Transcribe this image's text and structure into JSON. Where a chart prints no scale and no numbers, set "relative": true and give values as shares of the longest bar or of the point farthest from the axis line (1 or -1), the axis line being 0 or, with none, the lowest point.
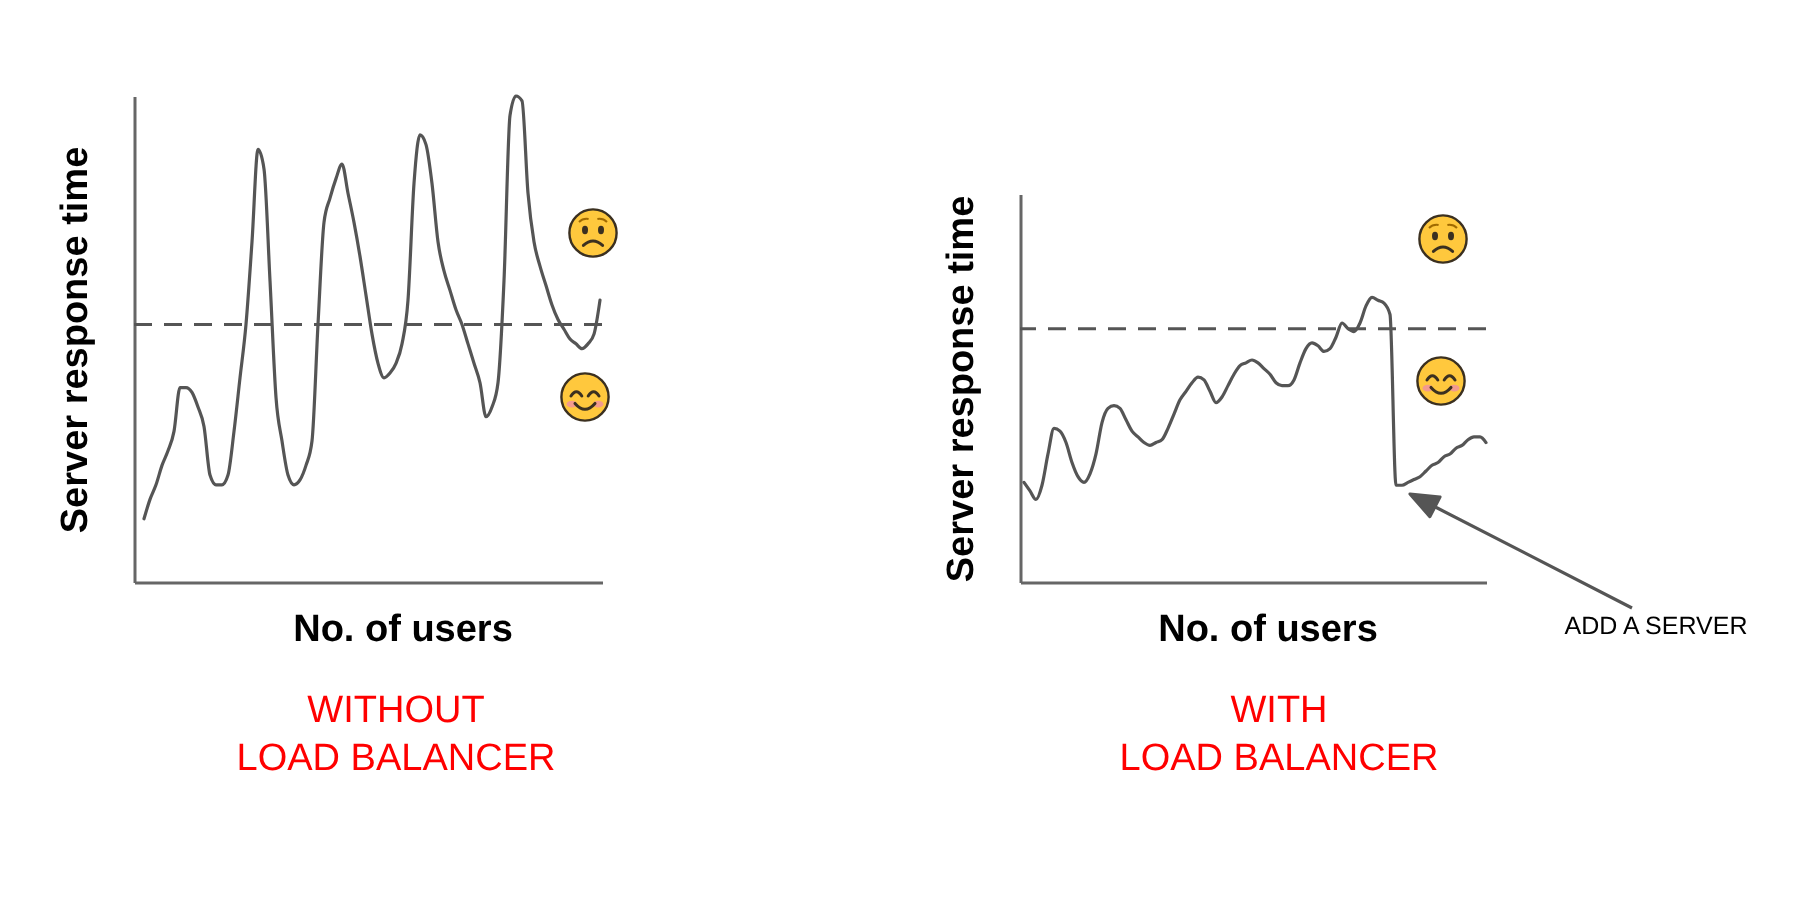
{
  "chart_data": [
    {
      "type": "line",
      "relative": true,
      "title": "WITHOUT\nLOAD BALANCER",
      "xlabel": "No. of users",
      "ylabel": "Server response time",
      "categories": [
        null,
        null,
        null,
        null,
        null,
        null,
        null,
        null,
        null,
        null,
        null,
        null,
        null,
        null,
        null,
        null,
        null,
        null,
        null,
        null,
        null,
        null,
        null,
        null,
        null,
        null,
        null,
        null,
        null,
        null,
        null,
        null,
        null,
        null,
        null,
        null,
        null,
        null,
        null,
        null,
        null,
        null,
        null,
        null,
        null,
        null,
        null,
        null,
        null,
        null,
        null,
        null,
        null,
        null,
        null,
        null,
        null,
        null,
        null,
        null,
        null,
        null,
        null,
        null,
        null,
        null,
        null,
        null,
        null,
        null,
        null,
        null,
        null,
        null,
        null,
        null,
        null
      ],
      "series": [
        {
          "color": "#555555",
          "values": [
            0.13,
            0.17,
            0.2,
            0.24,
            0.27,
            0.31,
            0.4,
            0.4,
            0.39,
            0.36,
            0.32,
            0.22,
            0.2,
            0.2,
            0.22,
            0.31,
            0.42,
            0.53,
            0.7,
            0.89,
            0.85,
            0.62,
            0.38,
            0.29,
            0.22,
            0.2,
            0.21,
            0.24,
            0.29,
            0.53,
            0.74,
            0.79,
            0.83,
            0.86,
            0.8,
            0.74,
            0.67,
            0.59,
            0.51,
            0.45,
            0.42,
            0.43,
            0.45,
            0.49,
            0.58,
            0.82,
            0.92,
            0.9,
            0.82,
            0.7,
            0.64,
            0.6,
            0.56,
            0.53,
            0.49,
            0.45,
            0.41,
            0.34,
            0.36,
            0.41,
            0.62,
            0.96,
            1.0,
            0.99,
            0.8,
            0.7,
            0.65,
            0.61,
            0.57,
            0.54,
            0.52,
            0.5,
            0.49,
            0.48,
            0.49,
            0.51,
            0.58
          ]
        }
      ],
      "ref_lines": [
        {
          "axis": "y",
          "value": 0.53,
          "color": "#555555",
          "line_style": "dashed"
        }
      ]
    },
    {
      "type": "line",
      "relative": true,
      "title": "WITH\nLOAD BALANCER",
      "xlabel": "No. of users",
      "ylabel": "Server response time",
      "categories": [
        null,
        null,
        null,
        null,
        null,
        null,
        null,
        null,
        null,
        null,
        null,
        null,
        null,
        null,
        null,
        null,
        null,
        null,
        null,
        null,
        null,
        null,
        null,
        null,
        null,
        null,
        null,
        null,
        null,
        null,
        null,
        null,
        null,
        null,
        null,
        null,
        null,
        null,
        null,
        null,
        null,
        null,
        null,
        null,
        null,
        null,
        null,
        null,
        null,
        null,
        null,
        null,
        null,
        null,
        null,
        null,
        null,
        null,
        null,
        null,
        null,
        null,
        null,
        null,
        null,
        null,
        null,
        null,
        null,
        null,
        null,
        null,
        null,
        null,
        null,
        null,
        null,
        null
      ],
      "series": [
        {
          "color": "#555555",
          "values": [
            0.35,
            0.32,
            0.29,
            0.34,
            0.45,
            0.54,
            0.53,
            0.49,
            0.42,
            0.37,
            0.35,
            0.38,
            0.45,
            0.56,
            0.61,
            0.62,
            0.61,
            0.57,
            0.53,
            0.51,
            0.49,
            0.48,
            0.49,
            0.5,
            0.54,
            0.59,
            0.64,
            0.67,
            0.7,
            0.72,
            0.71,
            0.67,
            0.63,
            0.65,
            0.69,
            0.73,
            0.76,
            0.77,
            0.78,
            0.77,
            0.75,
            0.73,
            0.7,
            0.69,
            0.69,
            0.71,
            0.77,
            0.82,
            0.84,
            0.83,
            0.81,
            0.82,
            0.86,
            0.91,
            0.89,
            0.88,
            0.91,
            0.97,
            1.0,
            0.99,
            0.98,
            0.94,
            0.34,
            0.34,
            0.35,
            0.36,
            0.37,
            0.39,
            0.41,
            0.42,
            0.44,
            0.45,
            0.47,
            0.48,
            0.5,
            0.51,
            0.51,
            0.49
          ]
        }
      ],
      "ref_lines": [
        {
          "axis": "y",
          "value": 0.89,
          "color": "#555555",
          "line_style": "dashed"
        }
      ],
      "annotations": [
        "ADD A SERVER"
      ]
    }
  ]
}
